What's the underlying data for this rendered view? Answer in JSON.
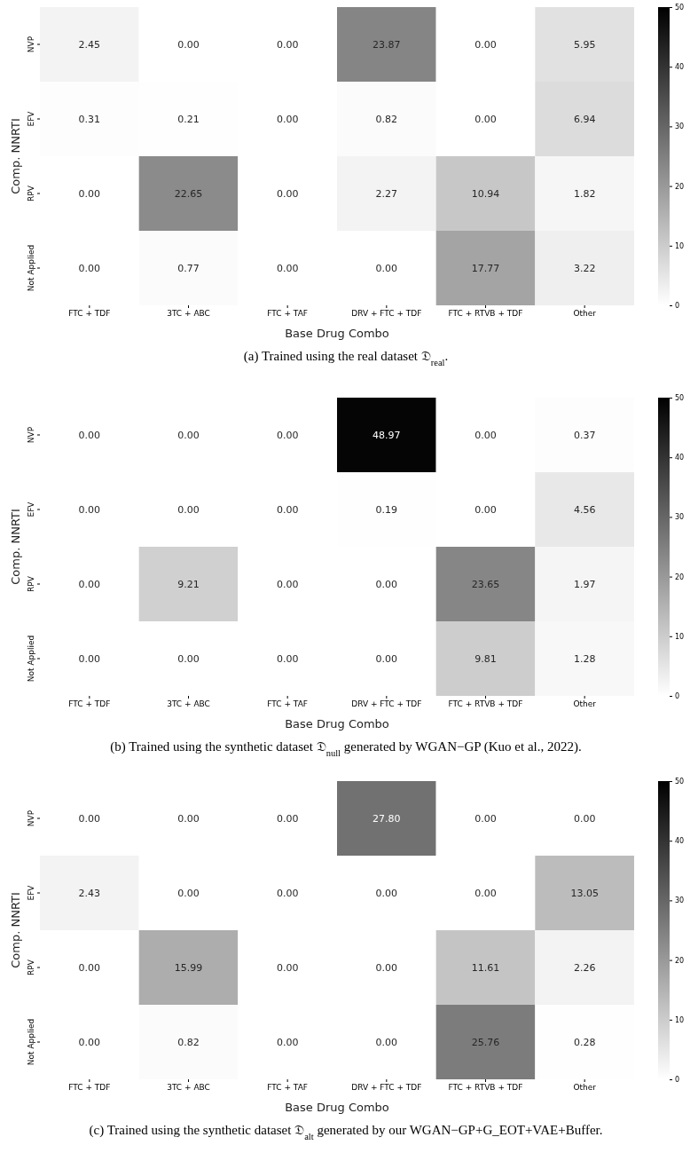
{
  "chart_data": [
    {
      "type": "heatmap",
      "xlabel": "Base Drug Combo",
      "ylabel": "Comp. NNRTI",
      "categories": [
        "FTC + TDF",
        "3TC + ABC",
        "FTC + TAF",
        "DRV + FTC + TDF",
        "FTC + RTVB + TDF",
        "Other"
      ],
      "y_categories": [
        "NVP",
        "EFV",
        "RPV",
        "Not Applied"
      ],
      "cells": [
        [
          2.45,
          0.0,
          0.0,
          23.87,
          0.0,
          5.95
        ],
        [
          0.31,
          0.21,
          0.0,
          0.82,
          0.0,
          6.94
        ],
        [
          0.0,
          22.65,
          0.0,
          2.27,
          10.94,
          1.82
        ],
        [
          0.0,
          0.77,
          0.0,
          0.0,
          17.77,
          3.22
        ]
      ],
      "cell_labels": [
        [
          "2.45",
          "0.00",
          "0.00",
          "23.87",
          "0.00",
          "5.95"
        ],
        [
          "0.31",
          "0.21",
          "0.00",
          "0.82",
          "0.00",
          "6.94"
        ],
        [
          "0.00",
          "22.65",
          "0.00",
          "2.27",
          "10.94",
          "1.82"
        ],
        [
          "0.00",
          "0.77",
          "0.00",
          "0.00",
          "17.77",
          "3.22"
        ]
      ],
      "clim": [
        0,
        50
      ],
      "cticks": [
        0,
        10,
        20,
        30,
        40,
        50
      ],
      "annotations": [
        "(a) Trained using the real dataset 𝔇$_{real}$."
      ]
    },
    {
      "type": "heatmap",
      "xlabel": "Base Drug Combo",
      "ylabel": "Comp. NNRTI",
      "categories": [
        "FTC + TDF",
        "3TC + ABC",
        "FTC + TAF",
        "DRV + FTC + TDF",
        "FTC + RTVB + TDF",
        "Other"
      ],
      "y_categories": [
        "NVP",
        "EFV",
        "RPV",
        "Not Applied"
      ],
      "cells": [
        [
          0.0,
          0.0,
          0.0,
          48.97,
          0.0,
          0.37
        ],
        [
          0.0,
          0.0,
          0.0,
          0.19,
          0.0,
          4.56
        ],
        [
          0.0,
          9.21,
          0.0,
          0.0,
          23.65,
          1.97
        ],
        [
          0.0,
          0.0,
          0.0,
          0.0,
          9.81,
          1.28
        ]
      ],
      "cell_labels": [
        [
          "0.00",
          "0.00",
          "0.00",
          "48.97",
          "0.00",
          "0.37"
        ],
        [
          "0.00",
          "0.00",
          "0.00",
          "0.19",
          "0.00",
          "4.56"
        ],
        [
          "0.00",
          "9.21",
          "0.00",
          "0.00",
          "23.65",
          "1.97"
        ],
        [
          "0.00",
          "0.00",
          "0.00",
          "0.00",
          "9.81",
          "1.28"
        ]
      ],
      "clim": [
        0,
        50
      ],
      "cticks": [
        0,
        10,
        20,
        30,
        40,
        50
      ],
      "annotations": [
        "(b) Trained using the synthetic dataset 𝔇$_{null}$ generated by WGAN−GP (Kuo et al., 2022)."
      ]
    },
    {
      "type": "heatmap",
      "xlabel": "Base Drug Combo",
      "ylabel": "Comp. NNRTI",
      "categories": [
        "FTC + TDF",
        "3TC + ABC",
        "FTC + TAF",
        "DRV + FTC + TDF",
        "FTC + RTVB + TDF",
        "Other"
      ],
      "y_categories": [
        "NVP",
        "EFV",
        "RPV",
        "Not Applied"
      ],
      "cells": [
        [
          0.0,
          0.0,
          0.0,
          27.8,
          0.0,
          0.0
        ],
        [
          2.43,
          0.0,
          0.0,
          0.0,
          0.0,
          13.05
        ],
        [
          0.0,
          15.99,
          0.0,
          0.0,
          11.61,
          2.26
        ],
        [
          0.0,
          0.82,
          0.0,
          0.0,
          25.76,
          0.28
        ]
      ],
      "cell_labels": [
        [
          "0.00",
          "0.00",
          "0.00",
          "27.80",
          "0.00",
          "0.00"
        ],
        [
          "2.43",
          "0.00",
          "0.00",
          "0.00",
          "0.00",
          "13.05"
        ],
        [
          "0.00",
          "15.99",
          "0.00",
          "0.00",
          "11.61",
          "2.26"
        ],
        [
          "0.00",
          "0.82",
          "0.00",
          "0.00",
          "25.76",
          "0.28"
        ]
      ],
      "clim": [
        0,
        50
      ],
      "cticks": [
        0,
        10,
        20,
        30,
        40,
        50
      ],
      "annotations": [
        "(c) Trained using the synthetic dataset 𝔇$_{alt}$ generated by our WGAN−GP+G_EOT+VAE+Buffer."
      ]
    }
  ]
}
